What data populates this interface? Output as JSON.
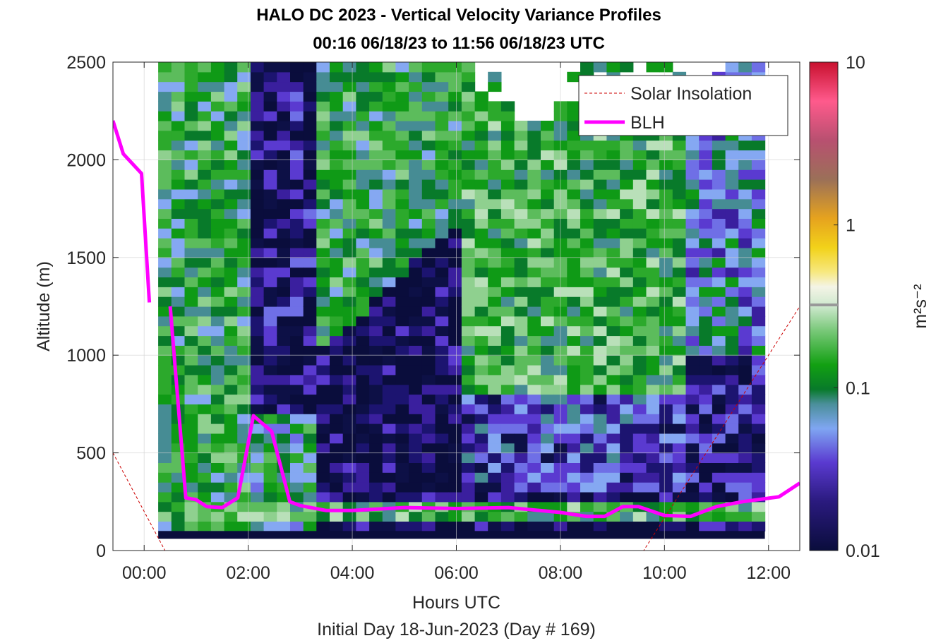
{
  "chart_data": {
    "type": "heatmap",
    "title": "HALO DC 2023 - Vertical Velocity Variance Profiles",
    "subtitle": "00:16 06/18/23 to 11:56 06/18/23  UTC",
    "xlabel": "Hours UTC",
    "xlabel2": "Initial Day 18-Jun-2023 (Day # 169)",
    "ylabel": "Altitude (m)",
    "colorbar_label": "m²s⁻²",
    "xlim": [
      -0.6,
      12.6
    ],
    "ylim": [
      0,
      2500
    ],
    "x_ticks": [
      0,
      2,
      4,
      6,
      8,
      10,
      12
    ],
    "x_tick_labels": [
      "00:00",
      "02:00",
      "04:00",
      "06:00",
      "08:00",
      "10:00",
      "12:00"
    ],
    "y_ticks": [
      0,
      500,
      1000,
      1500,
      2000,
      2500
    ],
    "y_tick_labels": [
      "0",
      "500",
      "1000",
      "1500",
      "2000",
      "2500"
    ],
    "colorbar_ticks": [
      0.01,
      0.1,
      1,
      10
    ],
    "colorbar_tick_labels": [
      "0.01",
      "0.1",
      "1",
      "10"
    ],
    "colorbar_scale": "log",
    "grid": true,
    "legend_position": "top-right",
    "legend": [
      {
        "label": "Solar Insolation",
        "color": "#cc0000",
        "style": "dashed"
      },
      {
        "label": "BLH",
        "color": "#ff00ff",
        "style": "solid"
      }
    ],
    "heatmap_time_range": [
      0.27,
      11.93
    ],
    "heatmap_alt_range": [
      100,
      2500
    ],
    "blh": {
      "x": [
        -0.6,
        -0.4,
        -0.05,
        0.1,
        0.5,
        0.8,
        1.0,
        1.2,
        1.5,
        1.8,
        2.1,
        2.45,
        2.8,
        3.0,
        3.5,
        4.0,
        5.0,
        6.0,
        7.0,
        8.0,
        8.5,
        8.85,
        9.2,
        9.5,
        10.0,
        10.5,
        11.0,
        11.5,
        12.2,
        12.6
      ],
      "y": [
        2200,
        2030,
        1930,
        1270,
        1250,
        270,
        260,
        225,
        220,
        270,
        690,
        610,
        250,
        230,
        205,
        205,
        220,
        215,
        220,
        195,
        175,
        175,
        225,
        225,
        180,
        175,
        225,
        250,
        275,
        345
      ]
    },
    "solar_insolation": {
      "x": [
        -0.6,
        0.4,
        9.6,
        12.6
      ],
      "y": [
        500,
        0,
        0,
        1250
      ]
    }
  }
}
